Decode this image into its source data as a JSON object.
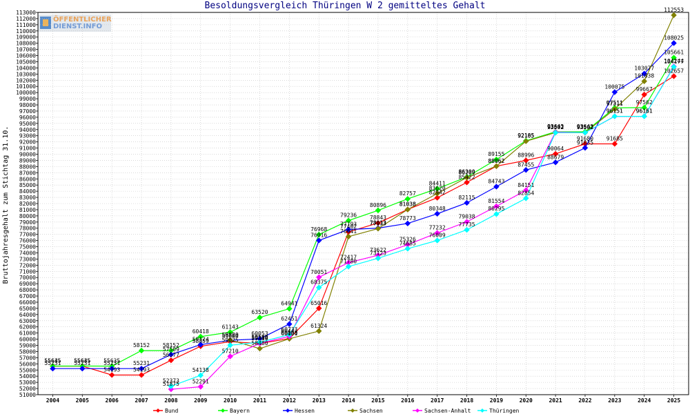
{
  "logo": {
    "line1": "ÖFFENTLICHER",
    "line2": "DIENST.INFO"
  },
  "chart_data": {
    "type": "line",
    "title": "Besoldungsvergleich Thüringen W 2 gemitteltes Gehalt",
    "ylabel": "Bruttojahresgehalt zum Stichtag 31.10.",
    "xlabel": "",
    "ylim": [
      51000,
      113000
    ],
    "ystep": 1000,
    "grid": true,
    "legend_position": "bottom",
    "categories": [
      "2004",
      "2005",
      "2006",
      "2007",
      "2008",
      "2009",
      "2010",
      "2011",
      "2012",
      "2013",
      "2014",
      "2015",
      "2016",
      "2017",
      "2018",
      "2019",
      "2020",
      "2021",
      "2022",
      "2023",
      "2024",
      "2025"
    ],
    "series": [
      {
        "name": "Bund",
        "color": "#ff0000",
        "values": [
          55635,
          55635,
          54193,
          54193,
          56577,
          58859,
          59600,
          59300,
          60100,
          65016,
          77402,
          78843,
          81038,
          82942,
          85422,
          88062,
          88996,
          90064,
          91680,
          91685,
          99667,
          102657
        ]
      },
      {
        "name": "Bayern",
        "color": "#00ff00",
        "values": [
          55645,
          55645,
          55635,
          58152,
          58152,
          60418,
          61143,
          63520,
          64941,
          76968,
          79236,
          80896,
          82757,
          84411,
          86300,
          89155,
          92185,
          93643,
          93643,
          97511,
          97562,
          105661
        ]
      },
      {
        "name": "Hessen",
        "color": "#0000ff",
        "values": [
          55231,
          55231,
          55231,
          55231,
          57509,
          59124,
          59820,
          60053,
          62451,
          76016,
          77793,
          78013,
          78773,
          80348,
          82115,
          84743,
          87455,
          88679,
          91035,
          100075,
          103077,
          108025
        ]
      },
      {
        "name": "Sachsen",
        "color": "#808000",
        "values": [
          null,
          null,
          null,
          null,
          null,
          null,
          59860,
          58480,
          60081,
          61324,
          76641,
          77933,
          81038,
          83620,
          86209,
          88062,
          92105,
          93502,
          93502,
          97311,
          101838,
          112553
        ]
      },
      {
        "name": "Sachsen-Anhalt",
        "color": "#ff00ff",
        "values": [
          null,
          null,
          null,
          null,
          51875,
          52291,
          57210,
          59310,
          60443,
          70051,
          72417,
          73622,
          75326,
          77232,
          79038,
          81554,
          84151,
          93602,
          93502,
          96151,
          96161,
          104244
        ]
      },
      {
        "name": "Thüringen",
        "color": "#00ffff",
        "values": [
          null,
          null,
          null,
          null,
          52373,
          54138,
          59025,
          59500,
          60733,
          68375,
          71780,
          73123,
          74685,
          76009,
          77735,
          80295,
          82854,
          93502,
          93502,
          96151,
          96151,
          104177
        ]
      }
    ]
  }
}
